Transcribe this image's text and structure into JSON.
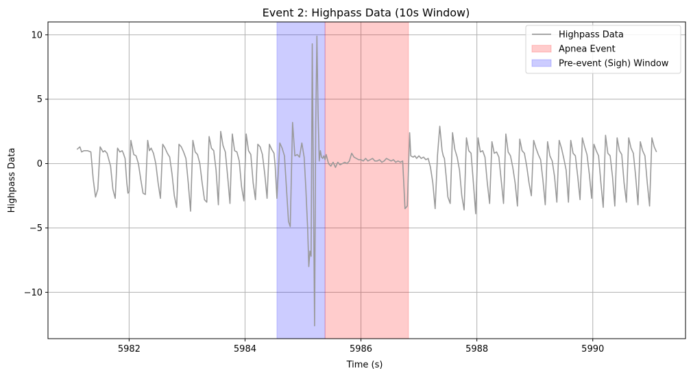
{
  "chart_data": {
    "type": "line",
    "title": "Event 2: Highpass Data (10s Window)",
    "xlabel": "Time (s)",
    "ylabel": "Highpass Data",
    "xlim": [
      5980.6,
      5991.6
    ],
    "ylim": [
      -13.6,
      11.0
    ],
    "xticks": [
      5982,
      5984,
      5986,
      5988,
      5990
    ],
    "yticks": [
      10,
      5,
      0,
      -5,
      -10
    ],
    "xtick_labels": [
      "5982",
      "5984",
      "5986",
      "5988",
      "5990"
    ],
    "ytick_labels": [
      "10",
      "5",
      "0",
      "−5",
      "−10"
    ],
    "grid": true,
    "legend_position": "upper right",
    "spans": [
      {
        "name": "Pre-event (Sigh) Window",
        "x0": 5984.55,
        "x1": 5985.38,
        "color": "#0000ff",
        "alpha": 0.2
      },
      {
        "name": "Apnea Event",
        "x0": 5985.38,
        "x1": 5986.82,
        "color": "#ff0000",
        "alpha": 0.2
      }
    ],
    "series": [
      {
        "name": "Highpass Data",
        "color": "#999999",
        "x": [
          5981.1,
          5981.15,
          5981.18,
          5981.22,
          5981.28,
          5981.34,
          5981.38,
          5981.42,
          5981.46,
          5981.5,
          5981.55,
          5981.58,
          5981.62,
          5981.68,
          5981.72,
          5981.76,
          5981.8,
          5981.84,
          5981.88,
          5981.9,
          5981.93,
          5981.96,
          5981.98,
          5982.0,
          5982.03,
          5982.08,
          5982.12,
          5982.16,
          5982.2,
          5982.24,
          5982.28,
          5982.32,
          5982.35,
          5982.38,
          5982.42,
          5982.46,
          5982.5,
          5982.54,
          5982.58,
          5982.62,
          5982.66,
          5982.7,
          5982.74,
          5982.78,
          5982.82,
          5982.86,
          5982.9,
          5982.94,
          5982.98,
          5983.02,
          5983.06,
          5983.1,
          5983.14,
          5983.18,
          5983.22,
          5983.26,
          5983.3,
          5983.34,
          5983.38,
          5983.42,
          5983.46,
          5983.5,
          5983.54,
          5983.58,
          5983.62,
          5983.66,
          5983.7,
          5983.74,
          5983.78,
          5983.82,
          5983.86,
          5983.9,
          5983.94,
          5983.98,
          5984.02,
          5984.06,
          5984.1,
          5984.14,
          5984.18,
          5984.22,
          5984.26,
          5984.3,
          5984.34,
          5984.38,
          5984.42,
          5984.46,
          5984.5,
          5984.52,
          5984.55,
          5984.6,
          5984.64,
          5984.68,
          5984.72,
          5984.75,
          5984.78,
          5984.82,
          5984.86,
          5984.9,
          5984.94,
          5984.98,
          5985.02,
          5985.05,
          5985.08,
          5985.1,
          5985.12,
          5985.14,
          5985.16,
          5985.18,
          5985.2,
          5985.22,
          5985.24,
          5985.26,
          5985.28,
          5985.3,
          5985.32,
          5985.34,
          5985.36,
          5985.38,
          5985.4,
          5985.44,
          5985.48,
          5985.52,
          5985.56,
          5985.6,
          5985.64,
          5985.68,
          5985.72,
          5985.76,
          5985.8,
          5985.84,
          5985.88,
          5985.92,
          5985.96,
          5986.0,
          5986.04,
          5986.08,
          5986.12,
          5986.16,
          5986.2,
          5986.24,
          5986.28,
          5986.32,
          5986.36,
          5986.4,
          5986.44,
          5986.48,
          5986.52,
          5986.56,
          5986.6,
          5986.64,
          5986.68,
          5986.72,
          5986.76,
          5986.8,
          5986.84,
          5986.86,
          5986.9,
          5986.93,
          5986.96,
          5987.0,
          5987.04,
          5987.08,
          5987.12,
          5987.16,
          5987.2,
          5987.24,
          5987.28,
          5987.32,
          5987.36,
          5987.4,
          5987.42,
          5987.44,
          5987.47,
          5987.5,
          5987.54,
          5987.58,
          5987.62,
          5987.66,
          5987.7,
          5987.74,
          5987.78,
          5987.82,
          5987.86,
          5987.9,
          5987.94,
          5987.98,
          5988.02,
          5988.06,
          5988.1,
          5988.14,
          5988.18,
          5988.22,
          5988.26,
          5988.3,
          5988.34,
          5988.38,
          5988.42,
          5988.46,
          5988.5,
          5988.54,
          5988.58,
          5988.62,
          5988.66,
          5988.7,
          5988.74,
          5988.78,
          5988.82,
          5988.86,
          5988.9,
          5988.94,
          5988.98,
          5989.02,
          5989.06,
          5989.1,
          5989.14,
          5989.18,
          5989.22,
          5989.26,
          5989.3,
          5989.34,
          5989.38,
          5989.42,
          5989.46,
          5989.5,
          5989.54,
          5989.58,
          5989.62,
          5989.66,
          5989.7,
          5989.74,
          5989.78,
          5989.82,
          5989.86,
          5989.9,
          5989.94,
          5989.98,
          5990.02,
          5990.06,
          5990.1,
          5990.14,
          5990.18,
          5990.22,
          5990.26,
          5990.3,
          5990.34,
          5990.38,
          5990.42,
          5990.46,
          5990.5,
          5990.54,
          5990.58,
          5990.62,
          5990.66,
          5990.7,
          5990.74,
          5990.78,
          5990.82,
          5990.86,
          5990.9,
          5990.94,
          5990.98,
          5991.02,
          5991.06,
          5991.1
        ],
        "y": [
          1.1,
          1.3,
          0.9,
          1.0,
          1.0,
          0.9,
          -1.2,
          -2.6,
          -2.0,
          1.3,
          0.9,
          1.0,
          0.8,
          -0.2,
          -2.0,
          -2.7,
          1.2,
          0.9,
          1.0,
          0.8,
          0.4,
          -1.5,
          -2.3,
          -2.2,
          1.8,
          0.7,
          0.6,
          0.0,
          -1.2,
          -2.3,
          -2.4,
          1.8,
          1.0,
          1.2,
          0.8,
          0.0,
          -1.5,
          -2.7,
          1.5,
          1.2,
          0.8,
          0.5,
          -0.8,
          -2.5,
          -3.4,
          1.5,
          1.3,
          0.9,
          0.4,
          -1.5,
          -3.7,
          1.8,
          0.9,
          0.7,
          0.0,
          -1.5,
          -2.8,
          -3.0,
          2.1,
          1.2,
          1.0,
          -0.5,
          -3.2,
          2.5,
          1.4,
          0.9,
          -1.0,
          -3.1,
          2.3,
          1.0,
          0.9,
          0.2,
          -1.8,
          -2.9,
          2.3,
          1.0,
          0.7,
          -1.5,
          -2.8,
          1.5,
          1.3,
          0.7,
          -0.8,
          -2.7,
          1.5,
          1.1,
          0.8,
          -0.2,
          -2.7,
          1.6,
          1.2,
          0.6,
          -2.3,
          -4.5,
          -4.9,
          3.2,
          0.6,
          0.7,
          0.5,
          1.6,
          0.5,
          -2.0,
          -5.0,
          -8.0,
          -6.8,
          -7.2,
          9.3,
          -2.0,
          -12.6,
          3.0,
          9.9,
          4.0,
          0.2,
          1.0,
          0.5,
          0.4,
          0.6,
          0.3,
          0.7,
          0.0,
          -0.2,
          0.1,
          -0.3,
          0.1,
          -0.1,
          0.0,
          0.1,
          0.0,
          0.2,
          0.8,
          0.5,
          0.4,
          0.3,
          0.3,
          0.2,
          0.4,
          0.2,
          0.3,
          0.4,
          0.2,
          0.2,
          0.3,
          0.1,
          0.2,
          0.4,
          0.3,
          0.2,
          0.3,
          0.1,
          0.2,
          0.1,
          0.2,
          -3.5,
          -3.3,
          2.4,
          0.6,
          0.5,
          0.6,
          0.4,
          0.6,
          0.4,
          0.5,
          0.3,
          0.4,
          -0.3,
          -1.5,
          -3.5,
          0.6,
          2.9,
          1.0,
          0.6,
          0.4,
          -1.0,
          -2.6,
          -3.1,
          2.4,
          1.1,
          0.5,
          -0.5,
          -2.5,
          -3.6,
          2.0,
          1.0,
          0.8,
          -1.5,
          -3.9,
          2.0,
          0.9,
          1.0,
          0.5,
          -1.5,
          -3.1,
          1.7,
          0.8,
          0.9,
          0.5,
          -1.3,
          -3.1,
          2.3,
          0.9,
          0.6,
          -0.3,
          -1.5,
          -3.3,
          1.9,
          1.0,
          0.8,
          -0.2,
          -1.5,
          -2.5,
          1.8,
          1.2,
          0.7,
          0.3,
          -1.3,
          -3.2,
          1.7,
          0.6,
          0.2,
          -1.0,
          -3.0,
          1.8,
          1.2,
          0.4,
          -0.5,
          -3.0,
          1.8,
          0.8,
          0.6,
          -1.0,
          -2.8,
          2.0,
          1.3,
          0.7,
          -0.8,
          -2.7,
          1.5,
          1.0,
          0.6,
          -1.5,
          -3.4,
          2.2,
          0.8,
          0.6,
          -1.0,
          -3.3,
          2.0,
          1.0,
          0.7,
          -1.5,
          -3.0,
          2.0,
          1.2,
          0.8,
          -1.0,
          -3.2,
          1.7,
          1.0,
          0.6,
          -1.5,
          -3.3,
          2.0,
          1.3,
          0.9
        ]
      }
    ],
    "legend": [
      {
        "label": "Highpass Data",
        "kind": "line",
        "color": "#999999"
      },
      {
        "label": "Apnea Event",
        "kind": "patch",
        "color": "#ff0000",
        "alpha": 0.2
      },
      {
        "label": "Pre-event (Sigh) Window",
        "kind": "patch",
        "color": "#0000ff",
        "alpha": 0.2
      }
    ]
  }
}
